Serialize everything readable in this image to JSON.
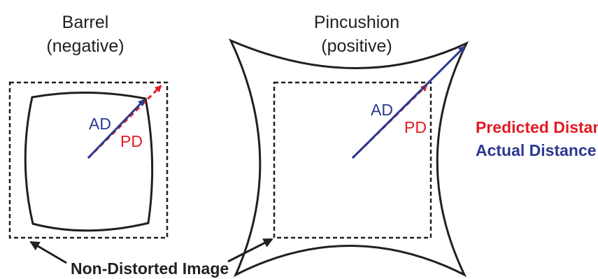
{
  "barrel": {
    "title_line1": "Barrel",
    "title_line2": "(negative)",
    "label_actual": "AD",
    "label_predicted": "PD"
  },
  "pincushion": {
    "title_line1": "Pincushion",
    "title_line2": "(positive)",
    "label_actual": "AD",
    "label_predicted": "PD"
  },
  "legend": {
    "predicted": "Predicted Distance",
    "actual": "Actual Distance"
  },
  "caption": "Non-Distorted Image",
  "colors": {
    "actual": "#2b3990",
    "predicted": "#e31b23",
    "outline": "#231f20"
  }
}
